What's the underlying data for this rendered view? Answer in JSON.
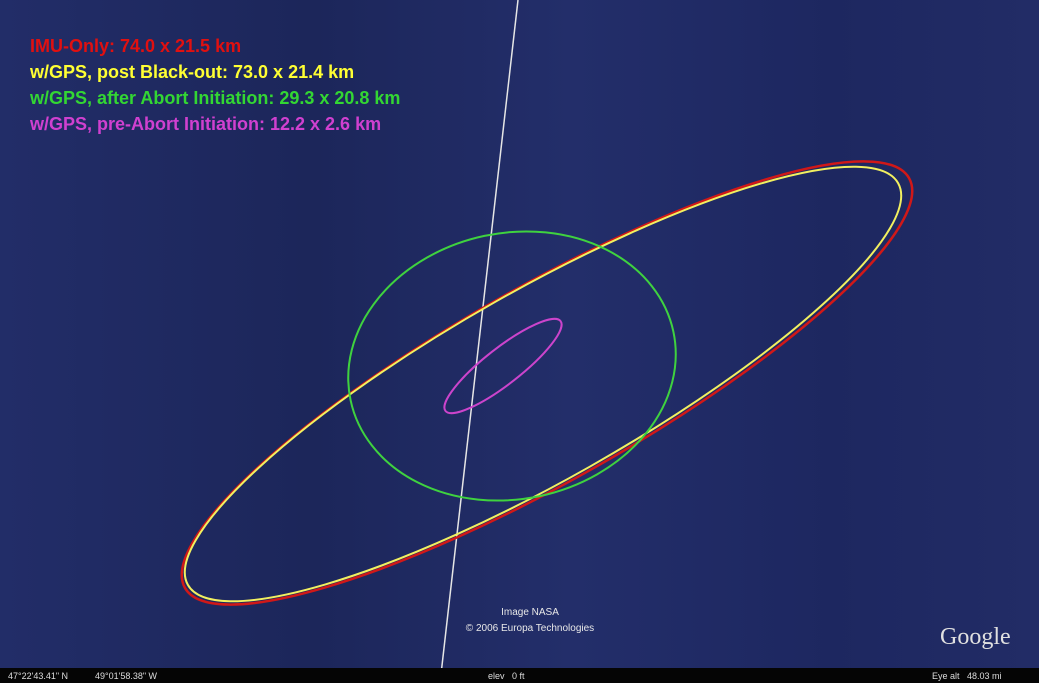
{
  "legend": [
    "IMU-Only: 74.0 x 21.5 km",
    "w/GPS, post Black-out: 73.0 x 21.4 km",
    "w/GPS, after Abort Initiation: 29.3 x 20.8 km",
    "w/GPS, pre-Abort Initiation: 12.2 x 2.6 km"
  ],
  "credits": [
    "Image NASA",
    "© 2006 Europa Technologies"
  ],
  "logo": "Google",
  "status_bar": {
    "latitude": "47°22'43.41\" N",
    "longitude": "49°01'58.38\" W",
    "elevation": "elev   0 ft",
    "eye_altitude": "Eye alt   48.03 mi"
  }
}
